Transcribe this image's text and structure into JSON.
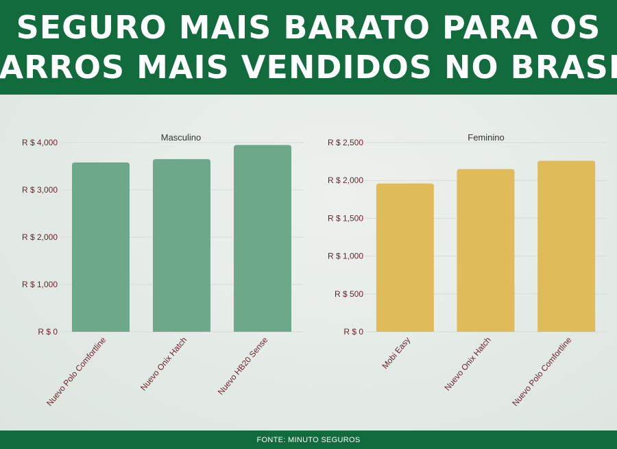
{
  "header": {
    "title_line1": "SEGURO MAIS BARATO PARA OS",
    "title_line2": "CARROS MAIS VENDIDOS NO BRASIL"
  },
  "footer": {
    "source": "FONTE: MINUTO SEGUROS"
  },
  "chart_data": [
    {
      "type": "bar",
      "title": "Masculino",
      "categories": [
        "Nuevo Polo Comfortline",
        "Nuevo Onix Hatch",
        "Nuevo HB20 Sense"
      ],
      "values": [
        3580,
        3650,
        3950
      ],
      "ylim": [
        0,
        4000
      ],
      "yticks": [
        0,
        1000,
        2000,
        3000,
        4000
      ],
      "ytick_labels": [
        "R $ 0",
        "R $ 1,000",
        "R $ 2,000",
        "R $ 3,000",
        "R $ 4,000"
      ],
      "color": "#6ea88b",
      "grid": true
    },
    {
      "type": "bar",
      "title": "Feminino",
      "categories": [
        "Mobi Easy",
        "Nuevo Onix Hatch",
        "Nuevo Polo Comfortline"
      ],
      "values": [
        1960,
        2150,
        2260
      ],
      "ylim": [
        0,
        2500
      ],
      "yticks": [
        0,
        500,
        1000,
        1500,
        2000,
        2500
      ],
      "ytick_labels": [
        "R $ 0",
        "R $ 500",
        "R $ 1,000",
        "R $ 1,500",
        "R $ 2,000",
        "R $ 2,500"
      ],
      "color": "#e0bb5a",
      "grid": true
    }
  ]
}
